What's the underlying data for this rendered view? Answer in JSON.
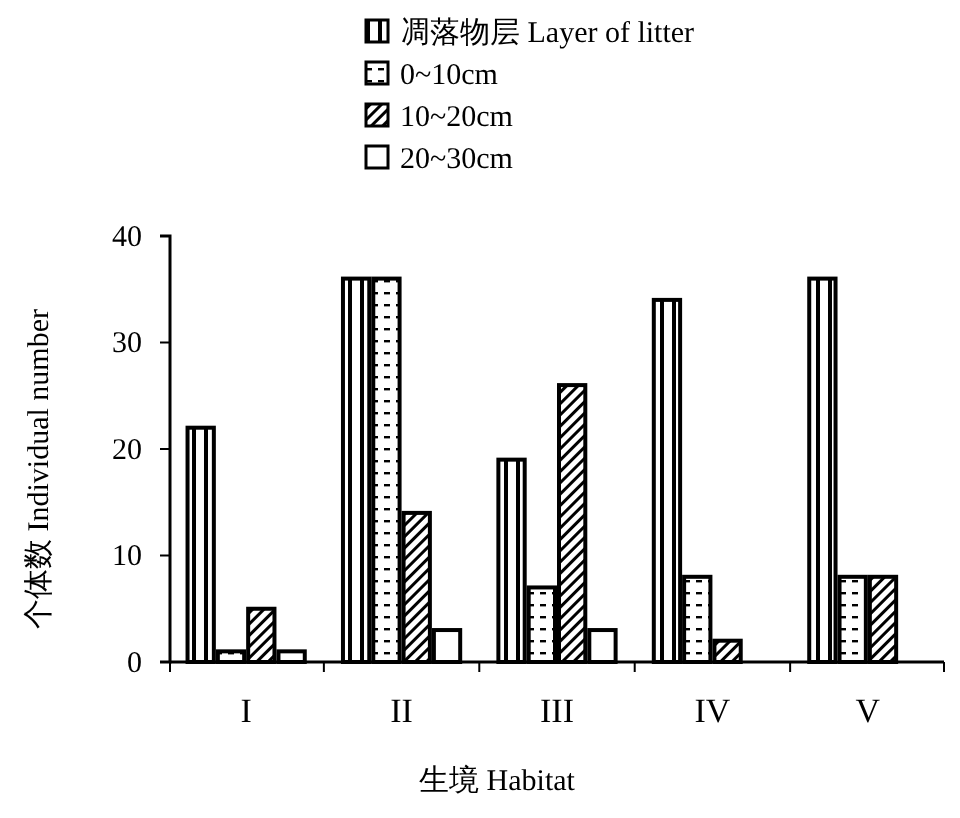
{
  "chart_data": {
    "type": "bar",
    "xlabel": "生境 Habitat",
    "ylabel": "个体数 Individual number",
    "categories": [
      "I",
      "II",
      "III",
      "IV",
      "V"
    ],
    "series": [
      {
        "name": "凋落物层 Layer of litter",
        "color": "#000000",
        "values": [
          22,
          36,
          19,
          34,
          36
        ]
      },
      {
        "name": "0~10cm",
        "color": "#000000",
        "values": [
          1,
          36,
          7,
          8,
          8
        ]
      },
      {
        "name": "10~20cm",
        "color": "#000000",
        "values": [
          5,
          14,
          26,
          2,
          8
        ]
      },
      {
        "name": "20~30cm",
        "color": "#000000",
        "values": [
          1,
          3,
          3,
          0,
          0
        ]
      }
    ],
    "ylim": [
      0,
      40
    ],
    "yticks": [
      0,
      10,
      20,
      30,
      40
    ],
    "grid": false,
    "legend": "top"
  }
}
